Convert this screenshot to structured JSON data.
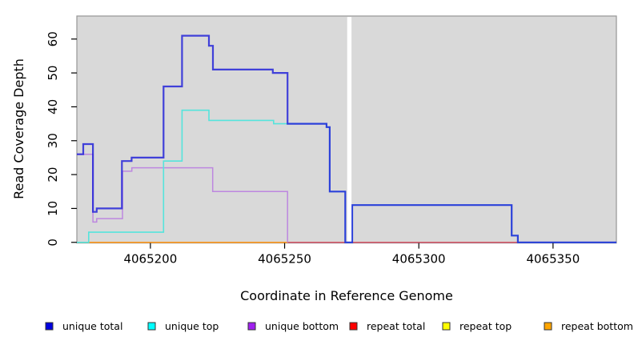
{
  "chart_data": {
    "type": "step-line",
    "title": "",
    "xlabel": "Coordinate in Reference Genome",
    "ylabel": "Read Coverage Depth",
    "xlim": [
      4065172.6,
      4065373.6
    ],
    "ylim": [
      -0.2,
      66.8
    ],
    "x_ticks": [
      4065200,
      4065250,
      4065300,
      4065350
    ],
    "y_ticks": [
      0,
      10,
      20,
      30,
      40,
      50,
      60
    ],
    "panel_bg": "#d9d9d9",
    "panel_border": "#969696",
    "tick_color": "#000000",
    "gap_band": {
      "x0": 4065273.3,
      "x1": 4065274.9,
      "color": "#ffffff"
    },
    "series": [
      {
        "id": "repeat-top",
        "name": "repeat top",
        "color": "#ffff00",
        "width": 1.4,
        "opacity": 1,
        "points": [
          [
            4065172.6,
            0
          ],
          [
            4065373.6,
            0
          ]
        ]
      },
      {
        "id": "repeat-total",
        "name": "repeat total",
        "color": "#d5486d",
        "width": 1.4,
        "opacity": 1,
        "points": [
          [
            4065172.6,
            0
          ],
          [
            4065373.6,
            0
          ]
        ]
      },
      {
        "id": "repeat-bottom",
        "name": "repeat bottom",
        "color": "#ff9b21",
        "width": 1.6,
        "opacity": 1,
        "points": [
          [
            4065173,
            0
          ],
          [
            4065251.1,
            0
          ]
        ]
      },
      {
        "id": "unique-bottom",
        "name": "unique bottom",
        "color": "#bd87e0",
        "width": 1.5,
        "opacity": 1,
        "points": [
          [
            4065172.6,
            26
          ],
          [
            4065178.6,
            26
          ],
          [
            4065178.6,
            6
          ],
          [
            4065180,
            6
          ],
          [
            4065180,
            7
          ],
          [
            4065189.6,
            7
          ],
          [
            4065189.6,
            21
          ],
          [
            4065193.1,
            21
          ],
          [
            4065193.1,
            22
          ],
          [
            4065223.2,
            22
          ],
          [
            4065223.2,
            15
          ],
          [
            4065251.1,
            15
          ],
          [
            4065251.1,
            0
          ]
        ]
      },
      {
        "id": "unique-top",
        "name": "unique top",
        "color": "#55e4dc",
        "width": 1.6,
        "opacity": 1,
        "points": [
          [
            4065172.6,
            0
          ],
          [
            4065177,
            0
          ],
          [
            4065177,
            3
          ],
          [
            4065204.9,
            3
          ],
          [
            4065204.9,
            24
          ],
          [
            4065211.8,
            24
          ],
          [
            4065211.8,
            39
          ],
          [
            4065221.8,
            39
          ],
          [
            4065221.8,
            36
          ],
          [
            4065245.9,
            36
          ],
          [
            4065245.9,
            35
          ],
          [
            4065265.6,
            35
          ],
          [
            4065265.6,
            34
          ],
          [
            4065266.8,
            34
          ],
          [
            4065266.8,
            15
          ],
          [
            4065272.6,
            15
          ],
          [
            4065272.6,
            0
          ],
          [
            4065275.2,
            0
          ],
          [
            4065275.2,
            11
          ],
          [
            4065334.6,
            11
          ],
          [
            4065334.6,
            2
          ],
          [
            4065336.9,
            2
          ],
          [
            4065336.9,
            0
          ],
          [
            4065373.6,
            0
          ]
        ]
      },
      {
        "id": "unique-total",
        "name": "unique total",
        "color": "#1f1fd9",
        "width": 2.2,
        "opacity": 0.82,
        "points": [
          [
            4065172.6,
            26
          ],
          [
            4065175,
            26
          ],
          [
            4065175,
            29
          ],
          [
            4065178.6,
            29
          ],
          [
            4065178.6,
            9
          ],
          [
            4065180,
            9
          ],
          [
            4065180,
            10
          ],
          [
            4065189.4,
            10
          ],
          [
            4065189.4,
            24
          ],
          [
            4065193,
            24
          ],
          [
            4065193,
            25
          ],
          [
            4065204.9,
            25
          ],
          [
            4065204.9,
            46
          ],
          [
            4065211.8,
            46
          ],
          [
            4065211.8,
            61
          ],
          [
            4065221.8,
            61
          ],
          [
            4065221.8,
            58
          ],
          [
            4065223.3,
            58
          ],
          [
            4065223.3,
            51
          ],
          [
            4065245.6,
            51
          ],
          [
            4065245.6,
            50
          ],
          [
            4065251.1,
            50
          ],
          [
            4065251.1,
            35
          ],
          [
            4065265.6,
            35
          ],
          [
            4065265.6,
            34
          ],
          [
            4065266.8,
            34
          ],
          [
            4065266.8,
            15
          ],
          [
            4065272.6,
            15
          ],
          [
            4065272.6,
            0
          ],
          [
            4065275.2,
            0
          ],
          [
            4065275.2,
            11
          ],
          [
            4065334.6,
            11
          ],
          [
            4065334.6,
            2
          ],
          [
            4065336.9,
            2
          ],
          [
            4065336.9,
            0
          ],
          [
            4065373.6,
            0
          ]
        ]
      }
    ]
  },
  "legend": {
    "items": [
      {
        "label": "unique total",
        "color": "#0000e0"
      },
      {
        "label": "unique top",
        "color": "#00ffff"
      },
      {
        "label": "unique bottom",
        "color": "#a020f0"
      },
      {
        "label": "repeat total",
        "color": "#ff0000"
      },
      {
        "label": "repeat top",
        "color": "#ffff00"
      },
      {
        "label": "repeat bottom",
        "color": "#ffa500"
      }
    ],
    "swatch_border": "#333333"
  }
}
